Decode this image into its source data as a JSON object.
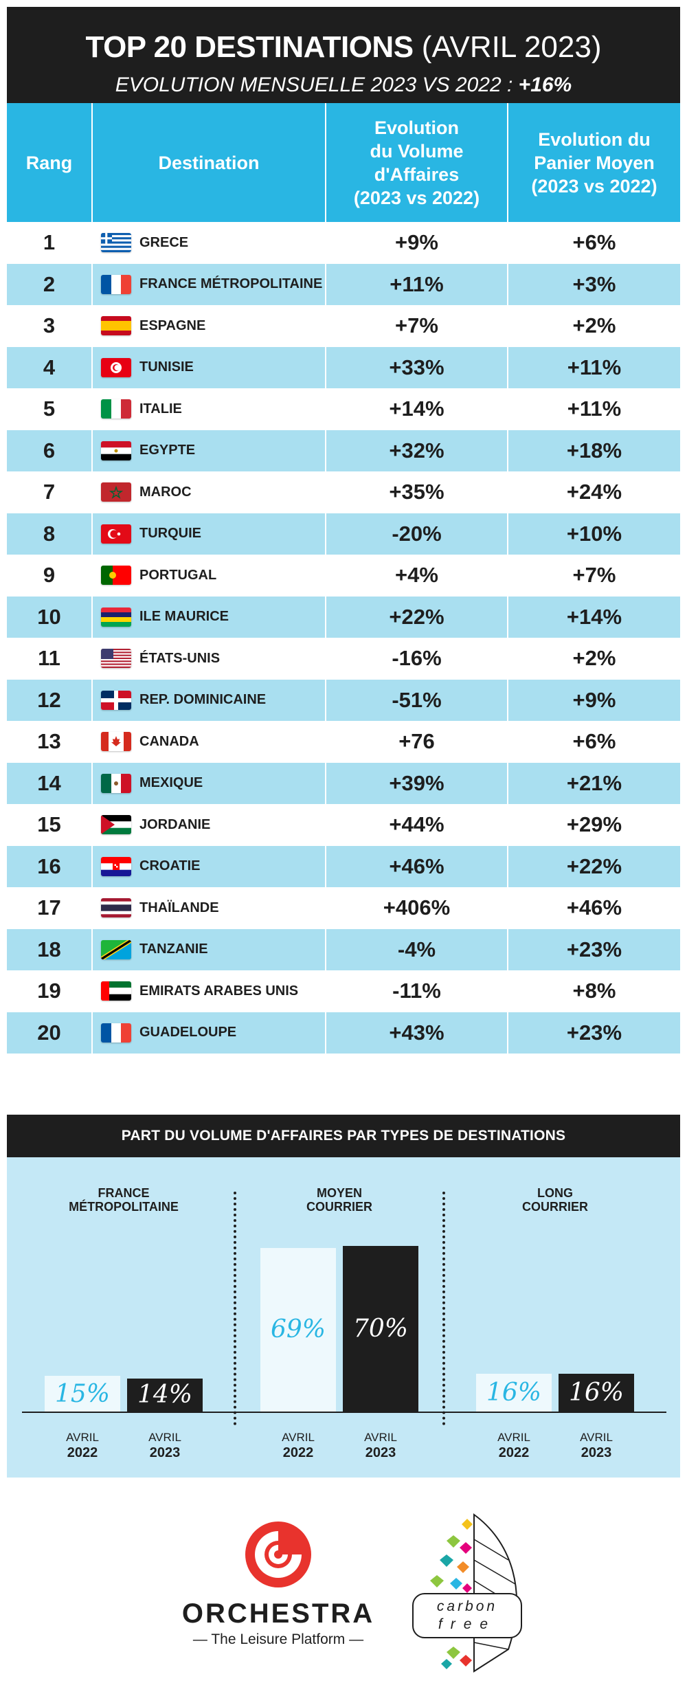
{
  "header": {
    "title_bold": "TOP 20 DESTINATIONS",
    "title_light": "(AVRIL 2023)",
    "subtitle": "EVOLUTION MENSUELLE 2023 VS 2022 : ",
    "subtitle_value": "+16%"
  },
  "table": {
    "headers": {
      "rank": "Rang",
      "destination": "Destination",
      "volume": [
        "Evolution",
        "du Volume",
        "d'Affaires",
        "(2023 vs 2022)"
      ],
      "basket": [
        "Evolution du",
        "Panier Moyen",
        "(2023 vs 2022)"
      ]
    },
    "rows": [
      {
        "rank": "1",
        "destination": "GRECE",
        "flag": "greece-flag",
        "volume": "+9%",
        "basket": "+6%"
      },
      {
        "rank": "2",
        "destination": "FRANCE MÉTROPOLITAINE",
        "flag": "france-flag",
        "volume": "+11%",
        "basket": "+3%"
      },
      {
        "rank": "3",
        "destination": "ESPAGNE",
        "flag": "spain-flag",
        "volume": "+7%",
        "basket": "+2%"
      },
      {
        "rank": "4",
        "destination": "TUNISIE",
        "flag": "tunisia-flag",
        "volume": "+33%",
        "basket": "+11%"
      },
      {
        "rank": "5",
        "destination": "ITALIE",
        "flag": "italy-flag",
        "volume": "+14%",
        "basket": "+11%"
      },
      {
        "rank": "6",
        "destination": "EGYPTE",
        "flag": "egypt-flag",
        "volume": "+32%",
        "basket": "+18%"
      },
      {
        "rank": "7",
        "destination": "MAROC",
        "flag": "morocco-flag",
        "volume": "+35%",
        "basket": "+24%"
      },
      {
        "rank": "8",
        "destination": "TURQUIE",
        "flag": "turkey-flag",
        "volume": "-20%",
        "basket": "+10%"
      },
      {
        "rank": "9",
        "destination": "PORTUGAL",
        "flag": "portugal-flag",
        "volume": "+4%",
        "basket": "+7%"
      },
      {
        "rank": "10",
        "destination": "ILE MAURICE",
        "flag": "mauritius-flag",
        "volume": "+22%",
        "basket": "+14%"
      },
      {
        "rank": "11",
        "destination": "ÉTATS-UNIS",
        "flag": "usa-flag",
        "volume": "-16%",
        "basket": "+2%"
      },
      {
        "rank": "12",
        "destination": "REP. DOMINICAINE",
        "flag": "dominican-republic-flag",
        "volume": "-51%",
        "basket": "+9%"
      },
      {
        "rank": "13",
        "destination": "CANADA",
        "flag": "canada-flag",
        "volume": "+76",
        "basket": "+6%"
      },
      {
        "rank": "14",
        "destination": "MEXIQUE",
        "flag": "mexico-flag",
        "volume": "+39%",
        "basket": "+21%"
      },
      {
        "rank": "15",
        "destination": "JORDANIE",
        "flag": "jordan-flag",
        "volume": "+44%",
        "basket": "+29%"
      },
      {
        "rank": "16",
        "destination": "CROATIE",
        "flag": "croatia-flag",
        "volume": "+46%",
        "basket": "+22%"
      },
      {
        "rank": "17",
        "destination": "THAÏLANDE",
        "flag": "thailand-flag",
        "volume": "+406%",
        "basket": "+46%"
      },
      {
        "rank": "18",
        "destination": "TANZANIE",
        "flag": "tanzania-flag",
        "volume": "-4%",
        "basket": "+23%"
      },
      {
        "rank": "19",
        "destination": "EMIRATS ARABES UNIS",
        "flag": "uae-flag",
        "volume": "-11%",
        "basket": "+8%"
      },
      {
        "rank": "20",
        "destination": "GUADELOUPE",
        "flag": "guadeloupe-flag",
        "volume": "+43%",
        "basket": "+23%"
      }
    ]
  },
  "colors": {
    "accent": "#29b6e3",
    "row_alt": "#a9dff0",
    "dark": "#1e1e1e",
    "panel": "#c4e8f6"
  },
  "chart_data": {
    "type": "bar",
    "title": "PART DU VOLUME D'AFFAIRES PAR TYPES DE DESTINATIONS",
    "groups": [
      {
        "label": [
          "FRANCE",
          "MÉTROPOLITAINE"
        ],
        "values": [
          15,
          14
        ],
        "labels": [
          "15%",
          "14%"
        ]
      },
      {
        "label": [
          "MOYEN",
          "COURRIER"
        ],
        "values": [
          69,
          70
        ],
        "labels": [
          "69%",
          "70%"
        ]
      },
      {
        "label": [
          "LONG",
          "COURRIER"
        ],
        "values": [
          16,
          16
        ],
        "labels": [
          "16%",
          "16%"
        ]
      }
    ],
    "series": [
      {
        "month": "AVRIL",
        "year": "2022",
        "color": "#eef9fd",
        "text_color": "#29b6e3"
      },
      {
        "month": "AVRIL",
        "year": "2023",
        "color": "#1e1e1e",
        "text_color": "#ffffff"
      }
    ],
    "ylim": [
      0,
      100
    ],
    "grid": false
  },
  "footer": {
    "orchestra_name": "ORCHESTRA",
    "orchestra_tagline": "— The Leisure Platform —",
    "carbon_line1": "carbon",
    "carbon_line2": "free"
  }
}
